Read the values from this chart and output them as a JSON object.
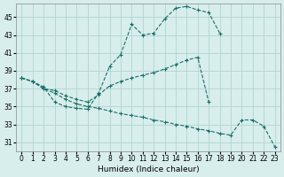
{
  "xlabel": "Humidex (Indice chaleur)",
  "background_color": "#d8eeec",
  "grid_color": "#b0d4d0",
  "line_color": "#1a6e68",
  "xlim": [
    -0.5,
    23.5
  ],
  "ylim": [
    30.0,
    46.5
  ],
  "yticks": [
    31,
    33,
    35,
    37,
    39,
    41,
    43,
    45
  ],
  "xticks": [
    0,
    1,
    2,
    3,
    4,
    5,
    6,
    7,
    8,
    9,
    10,
    11,
    12,
    13,
    14,
    15,
    16,
    17,
    18,
    19,
    20,
    21,
    22,
    23
  ],
  "curve1_x": [
    0,
    1,
    2,
    3,
    4,
    5,
    6,
    7,
    8,
    9,
    10,
    11,
    12,
    13,
    14,
    15,
    16,
    17,
    18
  ],
  "curve1_y": [
    38.2,
    37.8,
    37.2,
    35.5,
    35.0,
    34.8,
    34.7,
    36.5,
    39.5,
    40.8,
    44.2,
    43.0,
    43.2,
    44.8,
    46.0,
    46.2,
    45.8,
    45.5,
    43.2
  ],
  "curve2_x": [
    0,
    1,
    2,
    3,
    4,
    5,
    6,
    7,
    8,
    9,
    10,
    11,
    12,
    13,
    14,
    15,
    16,
    17
  ],
  "curve2_y": [
    38.2,
    37.8,
    37.0,
    36.8,
    36.2,
    35.8,
    35.5,
    36.3,
    37.3,
    37.8,
    38.2,
    38.5,
    38.8,
    39.2,
    39.7,
    40.2,
    40.5,
    35.5
  ],
  "curve3_x": [
    0,
    1,
    2,
    3,
    4,
    5,
    6,
    7,
    8,
    9,
    10,
    11,
    12,
    13,
    14,
    15,
    16,
    17,
    18,
    19,
    20,
    21,
    22,
    23
  ],
  "curve3_y": [
    38.2,
    37.8,
    37.0,
    36.5,
    35.8,
    35.3,
    35.0,
    34.8,
    34.5,
    34.2,
    34.0,
    33.8,
    33.5,
    33.3,
    33.0,
    32.8,
    32.5,
    32.3,
    32.0,
    31.8,
    33.5,
    33.5,
    32.8,
    30.5
  ]
}
